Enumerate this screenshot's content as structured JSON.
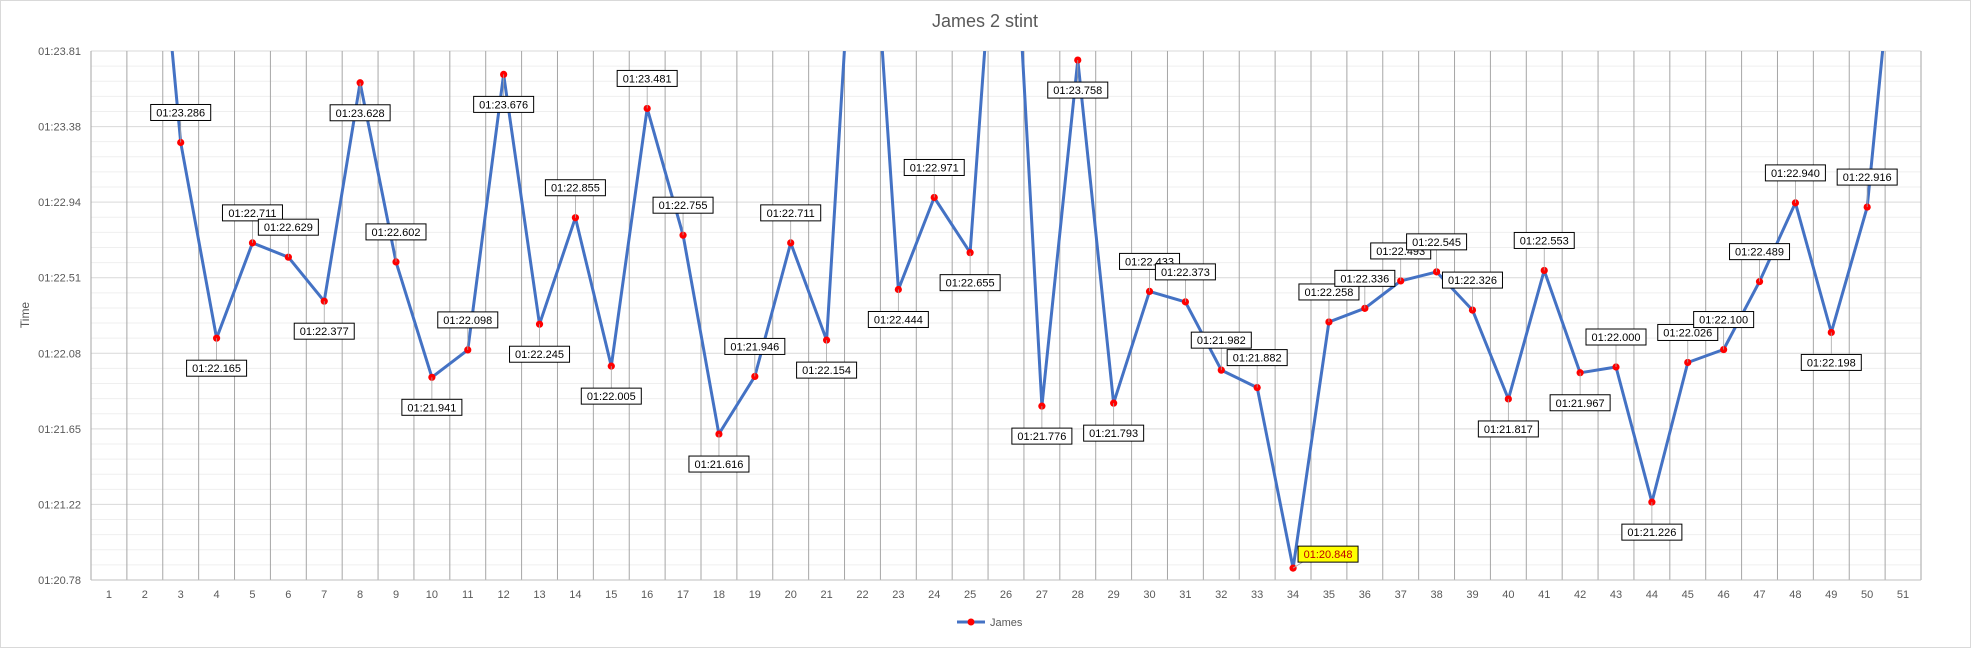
{
  "chart_data": {
    "type": "line",
    "title": "James 2 stint",
    "xlabel": "",
    "ylabel": "Time",
    "x": [
      1,
      2,
      3,
      4,
      5,
      6,
      7,
      8,
      9,
      10,
      11,
      12,
      13,
      14,
      15,
      16,
      17,
      18,
      19,
      20,
      21,
      22,
      23,
      24,
      25,
      26,
      27,
      28,
      29,
      30,
      31,
      32,
      33,
      34,
      35,
      36,
      37,
      38,
      39,
      40,
      41,
      42,
      43,
      44,
      45,
      46,
      47,
      48,
      49,
      50,
      51
    ],
    "ytick_labels": [
      "01:20.78",
      "01:21.22",
      "01:21.65",
      "01:22.08",
      "01:22.51",
      "01:22.94",
      "01:23.38",
      "01:23.81"
    ],
    "ylim": [
      80.78,
      83.81
    ],
    "grid": true,
    "legend": {
      "position": "bottom",
      "entries": [
        "James"
      ]
    },
    "series": [
      {
        "name": "James",
        "color": "#4472C4",
        "marker_color": "#FF0000",
        "values": [
          null,
          85.5,
          83.286,
          82.165,
          82.711,
          82.629,
          82.377,
          83.628,
          82.602,
          81.941,
          82.098,
          83.676,
          82.245,
          82.855,
          82.005,
          83.481,
          82.755,
          81.616,
          81.946,
          82.711,
          82.154,
          85.5,
          82.444,
          82.971,
          82.655,
          85.5,
          81.776,
          83.758,
          81.793,
          82.433,
          82.373,
          81.982,
          81.882,
          80.848,
          82.258,
          82.336,
          82.493,
          82.545,
          82.326,
          81.817,
          82.553,
          81.967,
          82.0,
          81.226,
          82.026,
          82.1,
          82.489,
          82.94,
          82.198,
          82.916,
          85.0
        ],
        "labels": [
          "",
          "",
          "01:23.286",
          "01:22.165",
          "01:22.711",
          "01:22.629",
          "01:22.377",
          "01:23.628",
          "01:22.602",
          "01:21.941",
          "01:22.098",
          "01:23.676",
          "01:22.245",
          "01:22.855",
          "01:22.005",
          "01:23.481",
          "01:22.755",
          "01:21.616",
          "01:21.946",
          "01:22.711",
          "01:22.154",
          "",
          "01:22.444",
          "01:22.971",
          "01:22.655",
          "",
          "01:21.776",
          "01:23.758",
          "01:21.793",
          "01:22.433",
          "01:22.373",
          "01:21.982",
          "01:21.882",
          "01:20.848",
          "01:22.258",
          "01:22.336",
          "01:22.493",
          "01:22.545",
          "01:22.326",
          "01:21.817",
          "01:22.553",
          "01:21.967",
          "01:22.000",
          "01:21.226",
          "01:22.026",
          "01:22.100",
          "01:22.489",
          "01:22.940",
          "01:22.198",
          "01:22.916",
          ""
        ],
        "highlight_label": {
          "x": 34,
          "text": "01:20.848",
          "background": "#FFFF00",
          "text_color": "#C00000"
        }
      }
    ]
  }
}
